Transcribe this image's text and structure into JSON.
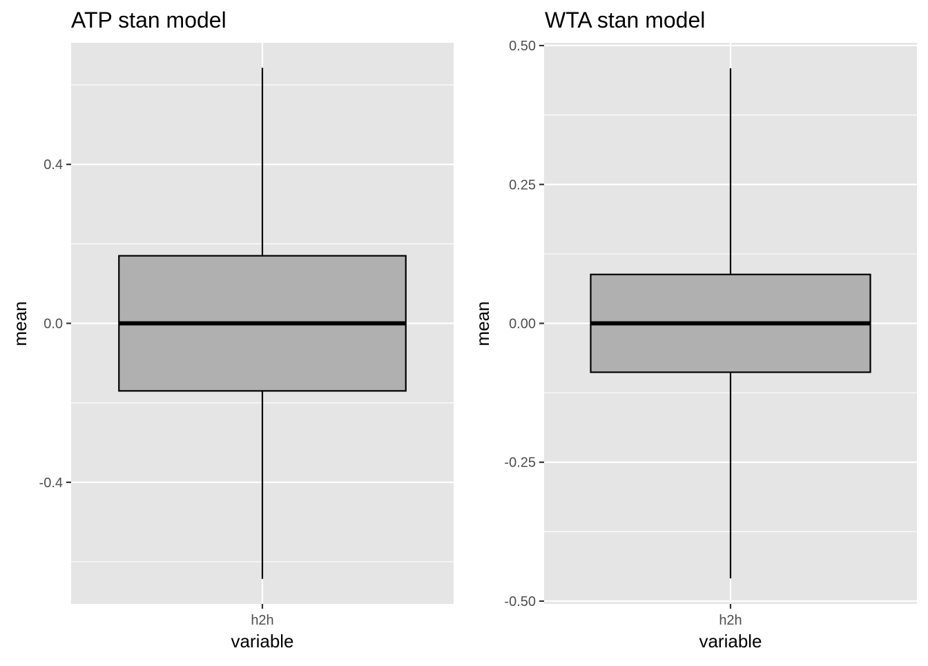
{
  "chart_data": [
    {
      "type": "boxplot",
      "title": "ATP stan model",
      "xlabel": "variable",
      "ylabel": "mean",
      "categories": [
        "h2h"
      ],
      "ylim": [
        -0.706,
        0.706
      ],
      "y_ticks": [
        -0.4,
        0.0,
        0.4
      ],
      "y_tick_labels": [
        "-0.4",
        "0.0",
        "0.4"
      ],
      "y_minor": [
        -0.6,
        -0.2,
        0.2,
        0.6
      ],
      "boxes": [
        {
          "category": "h2h",
          "min": -0.643,
          "q1": -0.17,
          "median": 0.0,
          "q3": 0.17,
          "max": 0.643
        }
      ],
      "grid": true,
      "legend": "none"
    },
    {
      "type": "boxplot",
      "title": "WTA stan model",
      "xlabel": "variable",
      "ylabel": "mean",
      "categories": [
        "h2h"
      ],
      "ylim": [
        -0.505,
        0.505
      ],
      "y_ticks": [
        -0.5,
        -0.25,
        0.0,
        0.25,
        0.5
      ],
      "y_tick_labels": [
        "-0.50",
        "-0.25",
        "0.00",
        "0.25",
        "0.50"
      ],
      "y_minor": [
        -0.375,
        -0.125,
        0.125,
        0.375
      ],
      "boxes": [
        {
          "category": "h2h",
          "min": -0.459,
          "q1": -0.088,
          "median": 0.0,
          "q3": 0.088,
          "max": 0.459
        }
      ],
      "grid": true,
      "legend": "none"
    }
  ],
  "colors": {
    "panel_background": "#e5e5e5",
    "grid_line": "#ffffff",
    "box_fill": "#b0b0b0",
    "box_stroke": "#000000",
    "tick_label": "#4d4d4d",
    "tick_mark": "#333333"
  }
}
